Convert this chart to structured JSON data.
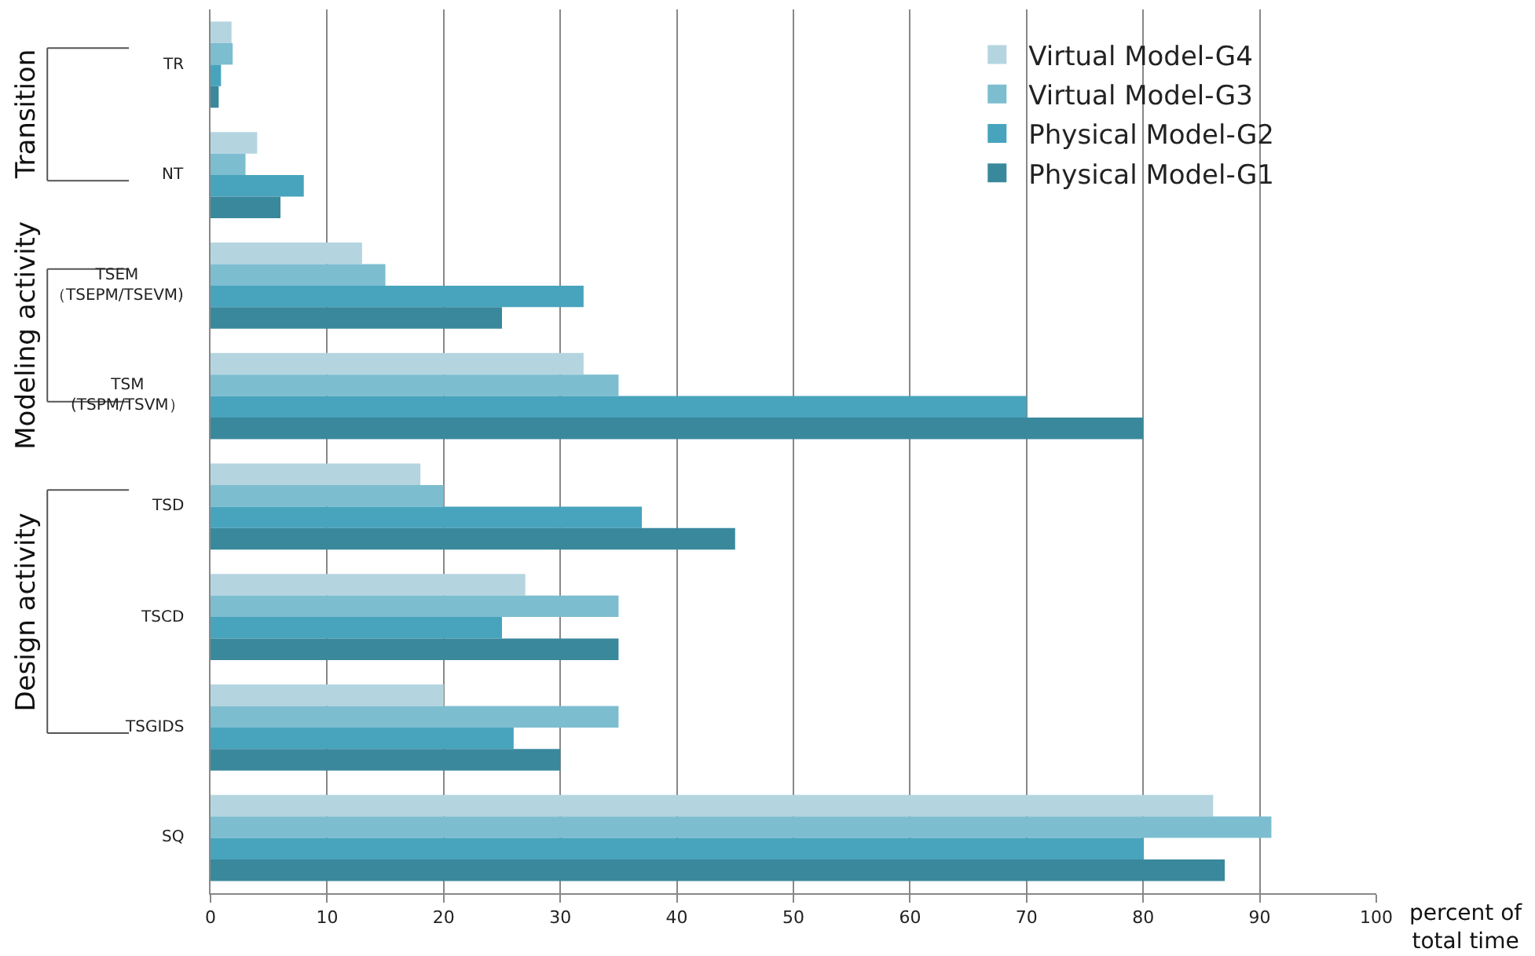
{
  "chart_data": {
    "type": "bar",
    "orientation": "horizontal",
    "categories": [
      "TR",
      "NT",
      "TSEM\n（TSEPM/TSEVM)",
      "TSM\n(TSPM/TSVM）",
      "TSD",
      "TSCD",
      "TSGIDS",
      "SQ"
    ],
    "series": [
      {
        "name": "Virtual Model-G4",
        "color": "#b4d5e0",
        "values": [
          1.8,
          4,
          13,
          32,
          18,
          27,
          20,
          86
        ]
      },
      {
        "name": "Virtual Model-G3",
        "color": "#7dbdd0",
        "values": [
          1.9,
          3,
          15,
          35,
          20,
          35,
          35,
          91
        ]
      },
      {
        "name": "Physical Model-G2",
        "color": "#48a4bd",
        "values": [
          0.9,
          8,
          32,
          70,
          37,
          25,
          26,
          80
        ]
      },
      {
        "name": "Physical Model-G1",
        "color": "#3a889c",
        "values": [
          0.7,
          6,
          25,
          80,
          45,
          35,
          30,
          87
        ]
      }
    ],
    "xlim": [
      0,
      100
    ],
    "xticks": [
      0,
      10,
      20,
      30,
      40,
      50,
      60,
      70,
      80,
      90,
      100
    ],
    "xlabel": "percent of\ntotal time",
    "grid": "x",
    "legend": "top right",
    "annotations": [
      "Transition",
      "Modeling activity",
      "Design activity"
    ]
  }
}
